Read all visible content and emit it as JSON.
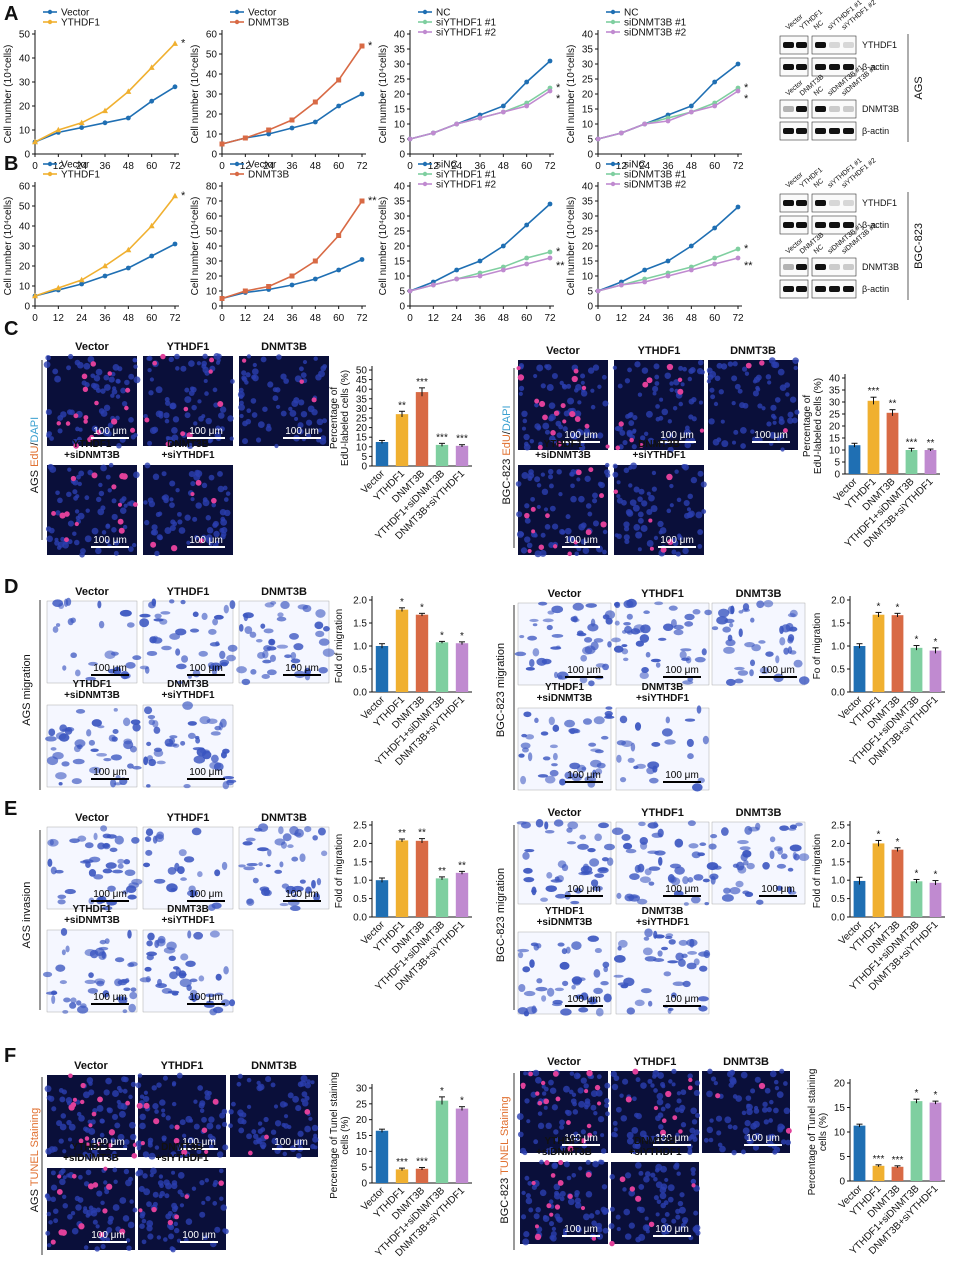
{
  "panel_letters": [
    "A",
    "B",
    "C",
    "D",
    "E",
    "F"
  ],
  "colors": {
    "vector": "#1f6fb3",
    "ythdf1": "#f0b030",
    "dnmt3b": "#d86a45",
    "si1": "#7fcfa0",
    "si2": "#c08ad0",
    "micro_blue": "#1a2a8a",
    "stain_blue": "#3a55c0"
  },
  "growth_charts": [
    {
      "row": "A",
      "ylabel": "Cell number (10⁴cells)",
      "x": [
        0,
        12,
        24,
        36,
        48,
        60,
        72
      ],
      "ticks_y": [
        0,
        10,
        20,
        30,
        40,
        50
      ],
      "ymax": 50,
      "series": [
        {
          "name": "Vector",
          "color": "vector",
          "values": [
            5,
            9,
            11,
            13,
            15,
            22,
            28
          ]
        },
        {
          "name": "YTHDF1",
          "color": "ythdf1",
          "values": [
            5,
            10,
            13,
            18,
            26,
            36,
            46
          ]
        }
      ],
      "sig": [
        "*"
      ]
    },
    {
      "row": "A",
      "ylabel": "Cell number (10⁴cells)",
      "x": [
        0,
        12,
        24,
        36,
        48,
        60,
        72
      ],
      "ticks_y": [
        0,
        10,
        20,
        30,
        40,
        50,
        60
      ],
      "ymax": 60,
      "series": [
        {
          "name": "Vector",
          "color": "vector",
          "values": [
            5,
            8,
            10,
            13,
            16,
            24,
            30
          ]
        },
        {
          "name": "DNMT3B",
          "color": "dnmt3b",
          "values": [
            5,
            8,
            12,
            17,
            26,
            37,
            54
          ]
        }
      ],
      "sig": [
        "*"
      ]
    },
    {
      "row": "A",
      "ylabel": "Cell number (10⁴cells)",
      "x": [
        0,
        12,
        24,
        36,
        48,
        60,
        72
      ],
      "ticks_y": [
        0,
        5,
        10,
        15,
        20,
        25,
        30,
        35,
        40
      ],
      "ymax": 40,
      "series": [
        {
          "name": "NC",
          "color": "vector",
          "values": [
            5,
            7,
            10,
            13,
            16,
            24,
            31
          ]
        },
        {
          "name": "siYTHDF1 #1",
          "color": "si1",
          "values": [
            5,
            7,
            10,
            12,
            14,
            17,
            22
          ]
        },
        {
          "name": "siYTHDF1 #2",
          "color": "si2",
          "values": [
            5,
            7,
            10,
            12,
            14,
            16,
            21
          ]
        }
      ],
      "sig": [
        "*",
        "*"
      ]
    },
    {
      "row": "A",
      "ylabel": "Cell number (10⁴cells)",
      "x": [
        0,
        12,
        24,
        36,
        48,
        60,
        72
      ],
      "ticks_y": [
        0,
        5,
        10,
        15,
        20,
        25,
        30,
        35,
        40
      ],
      "ymax": 40,
      "series": [
        {
          "name": "NC",
          "color": "vector",
          "values": [
            5,
            7,
            10,
            13,
            16,
            24,
            30
          ]
        },
        {
          "name": "siDNMT3B #1",
          "color": "si1",
          "values": [
            5,
            7,
            10,
            12,
            14,
            17,
            22
          ]
        },
        {
          "name": "siDNMT3B #2",
          "color": "si2",
          "values": [
            5,
            7,
            10,
            11,
            14,
            16,
            21
          ]
        }
      ],
      "sig": [
        "*",
        "*"
      ]
    },
    {
      "row": "B",
      "ylabel": "Cell number (10⁴cells)",
      "x": [
        0,
        12,
        24,
        36,
        48,
        60,
        72
      ],
      "ticks_y": [
        0,
        10,
        20,
        30,
        40,
        50,
        60
      ],
      "ymax": 60,
      "series": [
        {
          "name": "Vector",
          "color": "vector",
          "values": [
            5,
            8,
            11,
            15,
            19,
            25,
            31
          ]
        },
        {
          "name": "YTHDF1",
          "color": "ythdf1",
          "values": [
            5,
            9,
            13,
            20,
            28,
            40,
            55
          ]
        }
      ],
      "sig": [
        "*"
      ]
    },
    {
      "row": "B",
      "ylabel": "Cell number (10⁴cells)",
      "x": [
        0,
        12,
        24,
        36,
        48,
        60,
        72
      ],
      "ticks_y": [
        0,
        10,
        20,
        30,
        40,
        50,
        60,
        70,
        80
      ],
      "ymax": 80,
      "series": [
        {
          "name": "Vector",
          "color": "vector",
          "values": [
            5,
            9,
            11,
            14,
            18,
            24,
            31
          ]
        },
        {
          "name": "DNMT3B",
          "color": "dnmt3b",
          "values": [
            5,
            10,
            13,
            20,
            30,
            47,
            70
          ]
        }
      ],
      "sig": [
        "**"
      ]
    },
    {
      "row": "B",
      "ylabel": "Cell number (10⁴cells)",
      "x": [
        0,
        12,
        24,
        36,
        48,
        60,
        72
      ],
      "ticks_y": [
        0,
        5,
        10,
        15,
        20,
        25,
        30,
        35,
        40
      ],
      "ymax": 40,
      "series": [
        {
          "name": "siNC",
          "color": "vector",
          "values": [
            5,
            8,
            12,
            15,
            20,
            27,
            34
          ]
        },
        {
          "name": "siYTHDF1 #1",
          "color": "si1",
          "values": [
            5,
            7,
            9,
            11,
            13,
            16,
            18
          ]
        },
        {
          "name": "siYTHDF1 #2",
          "color": "si2",
          "values": [
            5,
            7,
            9,
            10,
            12,
            14,
            16
          ]
        }
      ],
      "sig": [
        "*",
        "**"
      ]
    },
    {
      "row": "B",
      "ylabel": "Cell number (10⁴cells)",
      "x": [
        0,
        12,
        24,
        36,
        48,
        60,
        72
      ],
      "ticks_y": [
        0,
        5,
        10,
        15,
        20,
        25,
        30,
        35,
        40
      ],
      "ymax": 40,
      "series": [
        {
          "name": "siNC",
          "color": "vector",
          "values": [
            5,
            8,
            12,
            15,
            20,
            26,
            33
          ]
        },
        {
          "name": "siDNMT3B #1",
          "color": "si1",
          "values": [
            5,
            7,
            9,
            11,
            13,
            16,
            19
          ]
        },
        {
          "name": "siDNMT3B #2",
          "color": "si2",
          "values": [
            5,
            7,
            8,
            10,
            12,
            14,
            16
          ]
        }
      ],
      "sig": [
        "*",
        "**"
      ]
    }
  ],
  "blots": {
    "ags": {
      "side_label": "AGS",
      "header": [
        "Vector",
        "YTHDF1",
        "NC",
        "siYTHDF1 #1",
        "siYTHDF1 #2"
      ],
      "header2": [
        "Vector",
        "DNMT3B",
        "NC",
        "siDNMT3B #1",
        "siDNMT3B #2"
      ],
      "bands": [
        "YTHDF1",
        "β-actin",
        "DNMT3B",
        "β-actin"
      ]
    },
    "bgc": {
      "side_label": "BGC-823",
      "header": [
        "Vector",
        "YTHDF1",
        "NC",
        "siYTHDF1 #1",
        "siYTHDF1 #2"
      ],
      "header2": [
        "Vector",
        "DNMT3B",
        "NC",
        "siDNMT3B #1",
        "siDNMT3B #2"
      ],
      "bands": [
        "YTHDF1",
        "β-actin",
        "DNMT3B",
        "β-actin"
      ]
    }
  },
  "micro_labels": {
    "top": [
      "Vector",
      "YTHDF1",
      "DNMT3B"
    ],
    "bottom_a": [
      "YTHDF1",
      "+siDNMT3B"
    ],
    "bottom_b": [
      "DNMT3B",
      "+siYTHDF1"
    ],
    "scale": "100 μm"
  },
  "side_labels": {
    "C_left": [
      "AGS ",
      "EdU",
      "/",
      "DAPI"
    ],
    "C_right": [
      "BGC-823 ",
      "EdU",
      "/",
      "DAPI"
    ],
    "D_left": "AGS migration",
    "D_right": "BGC-823 migration",
    "E_left": "AGS invasion",
    "E_right": "BGC-823 migration",
    "F_left": [
      "AGS ",
      "TUNEL Staining"
    ],
    "F_right": [
      "BGC-823 ",
      "TUNEL Staining"
    ]
  },
  "bar_categories": [
    "Vector",
    "YTHDF1",
    "DNMT3B",
    "YTHDF1+siDNMT3B",
    "DNMT3B+siYTHDF1"
  ],
  "bar_charts": [
    {
      "panel": "C-left",
      "ylabel": [
        "Percentage of",
        "EdU-labeled cells (%)"
      ],
      "ticks": [
        0,
        5,
        10,
        15,
        20,
        25,
        30,
        35,
        40,
        45,
        50
      ],
      "ymax": 50,
      "values": [
        12.5,
        27,
        38.5,
        11,
        10.5
      ],
      "errs": [
        0.8,
        1.5,
        2.2,
        0.8,
        0.6
      ],
      "sig": [
        "",
        "**",
        "***",
        "***",
        "***"
      ]
    },
    {
      "panel": "C-right",
      "ylabel": [
        "Percentage of",
        "EdU-labeled cells (%)"
      ],
      "ticks": [
        0,
        5,
        10,
        15,
        20,
        25,
        30,
        35,
        40
      ],
      "ymax": 40,
      "values": [
        12,
        30.5,
        25.5,
        10,
        10
      ],
      "errs": [
        0.8,
        1.5,
        1.3,
        0.7,
        0.4
      ],
      "sig": [
        "",
        "***",
        "**",
        "***",
        "**"
      ]
    },
    {
      "panel": "D-left",
      "ylabel": [
        "Fold of migration"
      ],
      "ticks": [
        0,
        0.5,
        1.0,
        1.5,
        2.0
      ],
      "ymax": 2.0,
      "values": [
        1.0,
        1.79,
        1.68,
        1.08,
        1.06
      ],
      "errs": [
        0.05,
        0.04,
        0.03,
        0.02,
        0.03
      ],
      "sig": [
        "",
        "*",
        "*",
        "*",
        "*"
      ]
    },
    {
      "panel": "D-right",
      "ylabel": [
        "Fo of migration"
      ],
      "ticks": [
        0,
        0.5,
        1.0,
        1.5,
        2.0
      ],
      "ymax": 2.0,
      "values": [
        1.0,
        1.68,
        1.67,
        0.96,
        0.9
      ],
      "errs": [
        0.05,
        0.05,
        0.04,
        0.05,
        0.06
      ],
      "sig": [
        "",
        "*",
        "*",
        "*",
        "*"
      ]
    },
    {
      "panel": "E-left",
      "ylabel": [
        "Fold of migration"
      ],
      "ticks": [
        0,
        0.5,
        1.0,
        1.5,
        2.0,
        2.5
      ],
      "ymax": 2.5,
      "values": [
        1.0,
        2.08,
        2.07,
        1.05,
        1.2
      ],
      "errs": [
        0.06,
        0.04,
        0.06,
        0.04,
        0.04
      ],
      "sig": [
        "",
        "**",
        "**",
        "**",
        "**"
      ]
    },
    {
      "panel": "E-right",
      "ylabel": [
        "Fold of migration"
      ],
      "ticks": [
        0,
        0.5,
        1.0,
        1.5,
        2.0,
        2.5
      ],
      "ymax": 2.5,
      "values": [
        0.98,
        2.0,
        1.83,
        0.97,
        0.93
      ],
      "errs": [
        0.1,
        0.08,
        0.05,
        0.05,
        0.06
      ],
      "sig": [
        "",
        "*",
        "*",
        "*",
        "*"
      ]
    },
    {
      "panel": "F-left",
      "ylabel": [
        "Percentage of Tunel staining",
        "cells (%)"
      ],
      "ticks": [
        0,
        5,
        10,
        15,
        20,
        25,
        30
      ],
      "ymax": 30,
      "values": [
        16.5,
        4.3,
        4.5,
        26,
        23.5
      ],
      "errs": [
        0.5,
        0.4,
        0.4,
        1.2,
        0.6
      ],
      "sig": [
        "",
        "***",
        "***",
        "*",
        "*"
      ]
    },
    {
      "panel": "F-right",
      "ylabel": [
        "Percentage of Tunel staining",
        "cells (%)"
      ],
      "ticks": [
        0,
        5,
        10,
        15,
        20
      ],
      "ymax": 20,
      "values": [
        11.3,
        3.1,
        2.9,
        16.3,
        16
      ],
      "errs": [
        0.3,
        0.2,
        0.2,
        0.4,
        0.3
      ],
      "sig": [
        "",
        "***",
        "***",
        "*",
        "*"
      ]
    }
  ]
}
